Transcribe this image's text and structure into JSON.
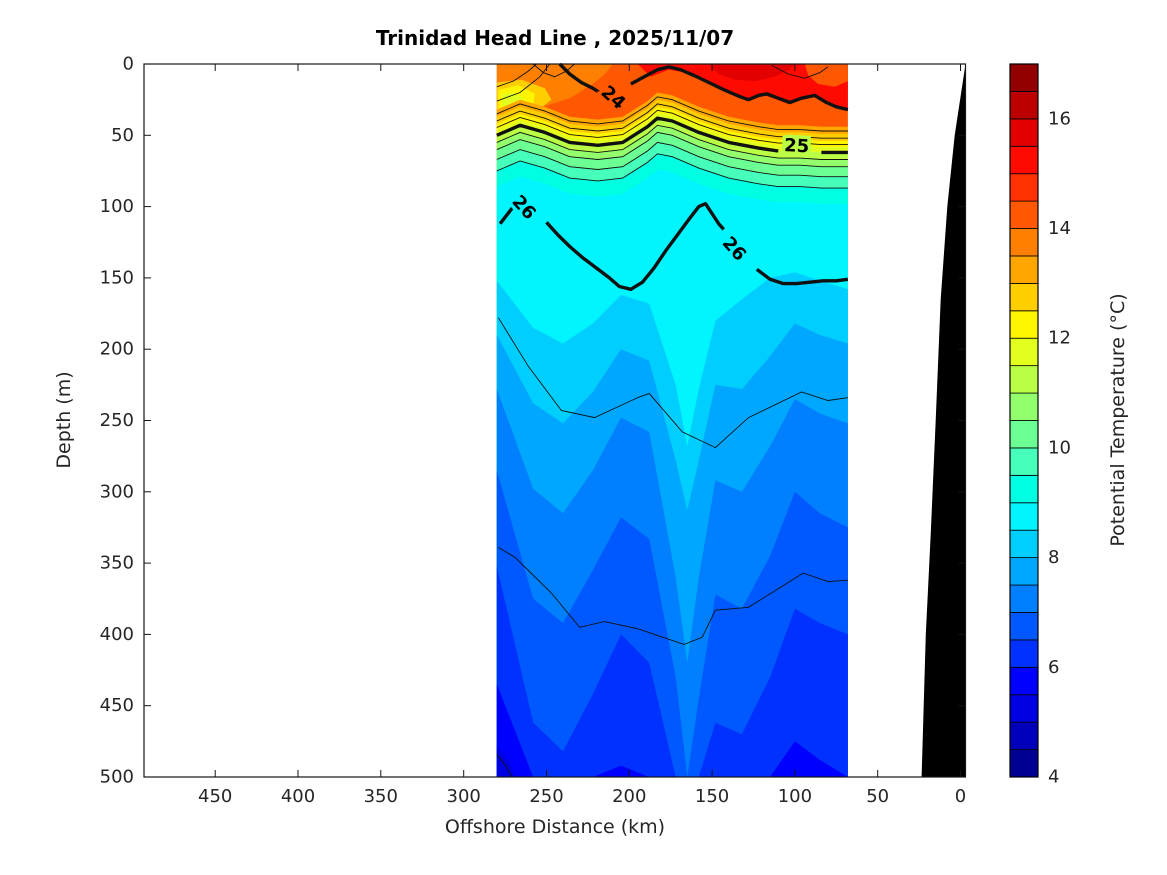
{
  "title": "Trinidad Head Line , 2025/11/07",
  "axes": {
    "x": {
      "label": "Offshore Distance (km)",
      "ticks": [
        450,
        400,
        350,
        300,
        250,
        200,
        150,
        100,
        50,
        0
      ],
      "lim": [
        493,
        -3
      ],
      "direction": "reversed"
    },
    "y": {
      "label": "Depth (m)",
      "ticks": [
        0,
        50,
        100,
        150,
        200,
        250,
        300,
        350,
        400,
        450,
        500
      ],
      "lim": [
        0,
        500
      ],
      "direction": "down"
    }
  },
  "colorbar": {
    "label": "Potential Temperature (°C)",
    "ticks": [
      4,
      6,
      8,
      10,
      12,
      14,
      16
    ],
    "lim": [
      4,
      17
    ],
    "segment_step": 0.5,
    "colors_bottom_to_top": [
      "#000093",
      "#0000ba",
      "#0000e2",
      "#0000ff",
      "#0031ff",
      "#0058ff",
      "#0080ff",
      "#00a7ff",
      "#00ceff",
      "#00f5ff",
      "#00ffe2",
      "#45ffba",
      "#6cff93",
      "#93ff6c",
      "#baff45",
      "#e2ff1d",
      "#fff500",
      "#ffce00",
      "#ffa700",
      "#ff8000",
      "#ff5800",
      "#ff3100",
      "#ff0a00",
      "#e20000",
      "#ba0000",
      "#930000"
    ]
  },
  "styles": {
    "background": "#ffffff",
    "axis_color": "#151515",
    "tick_label_color": "#262626",
    "contour_color": "#111111",
    "bathymetry_color": "#000000"
  },
  "chart_data": {
    "type": "filled_contour_section",
    "section_extent_km": [
      280,
      68
    ],
    "depth_extent_m": [
      0,
      500
    ],
    "base_color": "#ff5800",
    "contour_25_depth_profile": [
      [
        280,
        50
      ],
      [
        266,
        43
      ],
      [
        251,
        48
      ],
      [
        236,
        55
      ],
      [
        219,
        57
      ],
      [
        204,
        55
      ],
      [
        189,
        44
      ],
      [
        183,
        38
      ],
      [
        174,
        40
      ],
      [
        158,
        48
      ],
      [
        140,
        55
      ],
      [
        122,
        59
      ],
      [
        110,
        61
      ],
      [
        97,
        61
      ],
      [
        84,
        62
      ],
      [
        68,
        62
      ]
    ],
    "upper_bands": {
      "reference": "contour_25_depth_profile",
      "offsets_m": [
        -18,
        -13,
        -8,
        -4,
        0,
        5,
        10,
        17,
        25,
        36
      ],
      "colors": [
        "#ffa700",
        "#ffce00",
        "#fff500",
        "#e2ff1d",
        "#baff45",
        "#93ff6c",
        "#6cff93",
        "#45ffba",
        "#00ffe2",
        "#00f5ff"
      ]
    },
    "deep_bands": {
      "km_nodes": [
        280,
        258,
        240,
        222,
        205,
        188,
        172,
        165,
        158,
        148,
        132,
        115,
        100,
        85,
        68
      ],
      "bands": [
        {
          "color": "#00ceff",
          "depths": [
            152,
            185,
            196,
            182,
            162,
            168,
            225,
            268,
            228,
            180,
            165,
            150,
            146,
            152,
            158
          ]
        },
        {
          "color": "#00a7ff",
          "depths": [
            190,
            238,
            252,
            230,
            200,
            208,
            278,
            313,
            278,
            225,
            228,
            205,
            182,
            190,
            196
          ]
        },
        {
          "color": "#0080ff",
          "depths": [
            228,
            298,
            315,
            285,
            248,
            258,
            360,
            420,
            360,
            292,
            300,
            268,
            235,
            245,
            252
          ]
        },
        {
          "color": "#0058ff",
          "depths": [
            285,
            375,
            392,
            355,
            318,
            333,
            430,
            500,
            445,
            372,
            382,
            345,
            300,
            315,
            325
          ]
        },
        {
          "color": "#0031ff",
          "depths": [
            352,
            462,
            482,
            442,
            400,
            420,
            500,
            500,
            500,
            462,
            470,
            430,
            382,
            392,
            400
          ]
        },
        {
          "color": "#0000ff",
          "depths": [
            435,
            500,
            500,
            500,
            492,
            500,
            500,
            500,
            500,
            500,
            500,
            500,
            475,
            488,
            500
          ]
        }
      ]
    },
    "surface_patches": [
      {
        "name": "topleft-orange",
        "color": "#ff8000",
        "points": [
          [
            280,
            0
          ],
          [
            210,
            0
          ],
          [
            214,
            6
          ],
          [
            222,
            14
          ],
          [
            236,
            24
          ],
          [
            255,
            31
          ],
          [
            270,
            35
          ],
          [
            280,
            37
          ]
        ]
      },
      {
        "name": "topleft-yellow-orange",
        "color": "#ffce00",
        "points": [
          [
            280,
            13
          ],
          [
            265,
            11
          ],
          [
            251,
            17
          ],
          [
            247,
            25
          ],
          [
            256,
            33
          ],
          [
            272,
            37
          ],
          [
            280,
            38
          ]
        ]
      },
      {
        "name": "topleft-yellow",
        "color": "#fff500",
        "points": [
          [
            279,
            18
          ],
          [
            267,
            15
          ],
          [
            257,
            21
          ],
          [
            258,
            29
          ],
          [
            268,
            34
          ],
          [
            279,
            35
          ]
        ]
      },
      {
        "name": "topleft-bright-yellow",
        "color": "#e2ff1d",
        "points": [
          [
            277,
            21
          ],
          [
            269,
            20
          ],
          [
            263,
            25
          ],
          [
            266,
            30
          ],
          [
            274,
            31
          ],
          [
            277,
            29
          ]
        ]
      },
      {
        "name": "nearshore-red",
        "color": "#ff0a00",
        "points": [
          [
            195,
            0
          ],
          [
            187,
            9
          ],
          [
            176,
            4
          ],
          [
            166,
            6
          ],
          [
            156,
            10
          ],
          [
            143,
            18
          ],
          [
            129,
            26
          ],
          [
            118,
            22
          ],
          [
            104,
            28
          ],
          [
            89,
            23
          ],
          [
            76,
            30
          ],
          [
            68,
            33
          ],
          [
            68,
            0
          ]
        ]
      },
      {
        "name": "nearshore-dark-red",
        "color": "#e20000",
        "points": [
          [
            152,
            0
          ],
          [
            146,
            7
          ],
          [
            136,
            11
          ],
          [
            124,
            12
          ],
          [
            112,
            9
          ],
          [
            104,
            4
          ],
          [
            100,
            0
          ]
        ]
      },
      {
        "name": "corner-orange",
        "color": "#ff5800",
        "points": [
          [
            94,
            0
          ],
          [
            92,
            8
          ],
          [
            86,
            14
          ],
          [
            76,
            16
          ],
          [
            68,
            12
          ],
          [
            68,
            0
          ]
        ]
      },
      {
        "name": "bottom-left-navy",
        "color": "#0000e2",
        "points": [
          [
            280,
            478
          ],
          [
            273,
            489
          ],
          [
            269,
            500
          ],
          [
            280,
            500
          ]
        ]
      }
    ],
    "isopycnals": {
      "thick": [
        {
          "label": "24",
          "labels": [
            {
              "km": 210,
              "m": 24,
              "rot": 42,
              "halo": "#ff5800"
            }
          ],
          "segments": [
            [
              [
                242,
                0
              ],
              [
                236,
                7
              ],
              [
                229,
                13
              ],
              [
                222,
                17
              ],
              [
                218,
                20
              ]
            ],
            [
              [
                199,
                14
              ],
              [
                191,
                9
              ],
              [
                183,
                4
              ],
              [
                176,
                2
              ],
              [
                169,
                4
              ],
              [
                161,
                8
              ],
              [
                152,
                13
              ],
              [
                143,
                18
              ],
              [
                133,
                23
              ],
              [
                128,
                25
              ],
              [
                122,
                22
              ],
              [
                117,
                21
              ],
              [
                110,
                24
              ],
              [
                103,
                27
              ],
              [
                96,
                24
              ],
              [
                88,
                22
              ],
              [
                81,
                27
              ],
              [
                75,
                30
              ],
              [
                68,
                32
              ]
            ]
          ]
        },
        {
          "label": "25",
          "labels": [
            {
              "km": 99,
              "m": 58,
              "rot": 3,
              "halo": "#baff45"
            }
          ],
          "segments": [
            [
              [
                280,
                50
              ],
              [
                266,
                43
              ],
              [
                251,
                48
              ],
              [
                236,
                55
              ],
              [
                219,
                57
              ],
              [
                204,
                55
              ],
              [
                189,
                44
              ],
              [
                183,
                38
              ],
              [
                174,
                40
              ],
              [
                158,
                48
              ],
              [
                140,
                55
              ],
              [
                122,
                59
              ],
              [
                110,
                61
              ]
            ],
            [
              [
                84,
                62
              ],
              [
                75,
                62
              ],
              [
                68,
                62
              ]
            ]
          ]
        },
        {
          "label": "26",
          "labels": [
            {
              "km": 264,
              "m": 101,
              "rot": 48,
              "halo": "#00f5ff"
            },
            {
              "km": 137,
              "m": 130,
              "rot": 48,
              "halo": "#00f5ff"
            }
          ],
          "segments": [
            [
              [
                278,
                112
              ],
              [
                274,
                106
              ],
              [
                270,
                100
              ]
            ],
            [
              [
                250,
                111
              ],
              [
                243,
                120
              ],
              [
                236,
                128
              ],
              [
                228,
                136
              ],
              [
                220,
                143
              ],
              [
                212,
                150
              ],
              [
                206,
                156
              ],
              [
                199,
                158
              ],
              [
                192,
                153
              ],
              [
                185,
                143
              ],
              [
                178,
                131
              ],
              [
                171,
                120
              ],
              [
                164,
                109
              ],
              [
                158,
                100
              ],
              [
                154,
                98
              ],
              [
                150,
                105
              ],
              [
                146,
                112
              ],
              [
                143,
                116
              ]
            ],
            [
              [
                123,
                144
              ],
              [
                115,
                151
              ],
              [
                107,
                154
              ],
              [
                99,
                154
              ],
              [
                91,
                153
              ],
              [
                83,
                152
              ],
              [
                75,
                152
              ],
              [
                68,
                151
              ]
            ]
          ]
        }
      ],
      "thin_offsets_m": [
        -15,
        -10,
        -5.5,
        5,
        10,
        17,
        25
      ],
      "thin_extra": [
        [
          [
            280,
            16
          ],
          [
            270,
            12
          ],
          [
            261,
            5
          ],
          [
            256,
            0
          ]
        ],
        [
          [
            280,
            26
          ],
          [
            266,
            20
          ],
          [
            254,
            9
          ],
          [
            248,
            0
          ]
        ],
        [
          [
            258,
            0
          ],
          [
            252,
            6
          ],
          [
            245,
            9
          ],
          [
            238,
            5
          ],
          [
            233,
            0
          ]
        ],
        [
          [
            114,
            1
          ],
          [
            104,
            7
          ],
          [
            94,
            10
          ],
          [
            85,
            6
          ],
          [
            80,
            2
          ]
        ],
        [
          [
            279,
            178
          ],
          [
            261,
            212
          ],
          [
            241,
            243
          ],
          [
            221,
            248
          ],
          [
            195,
            234
          ],
          [
            188,
            231
          ],
          [
            168,
            258
          ],
          [
            148,
            269
          ],
          [
            128,
            248
          ],
          [
            96,
            230
          ],
          [
            80,
            236
          ],
          [
            68,
            234
          ]
        ],
        [
          [
            279,
            339
          ],
          [
            269,
            346
          ],
          [
            247,
            371
          ],
          [
            230,
            395
          ],
          [
            215,
            391
          ],
          [
            195,
            396
          ],
          [
            167,
            407
          ],
          [
            156,
            402
          ],
          [
            148,
            383
          ],
          [
            128,
            381
          ],
          [
            95,
            357
          ],
          [
            80,
            363
          ],
          [
            68,
            362
          ]
        ],
        [
          [
            280,
            484
          ],
          [
            274,
            493
          ],
          [
            271,
            500
          ]
        ]
      ]
    },
    "bathymetry_profile": [
      [
        -3,
        0
      ],
      [
        3.5,
        50
      ],
      [
        8,
        100
      ],
      [
        12,
        165
      ],
      [
        15,
        250
      ],
      [
        18,
        330
      ],
      [
        21,
        400
      ],
      [
        23.5,
        500
      ]
    ]
  }
}
